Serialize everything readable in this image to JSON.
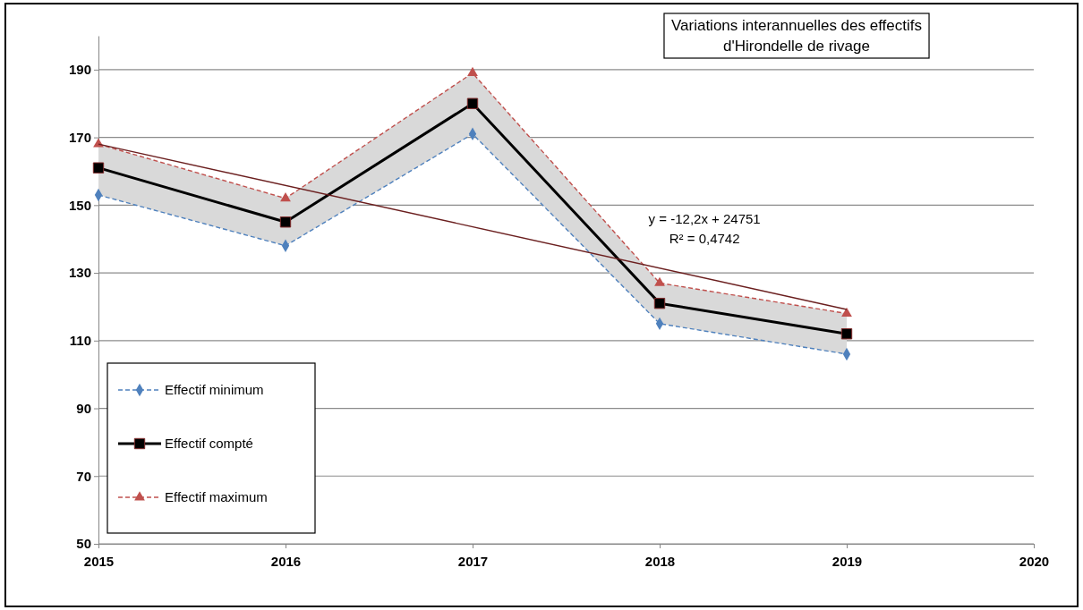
{
  "chart_data": {
    "type": "line",
    "title": "Variations interannuelles des effectifs d'Hirondelle de rivage",
    "x": [
      2015,
      2016,
      2017,
      2018,
      2019
    ],
    "xlim": [
      2015,
      2020
    ],
    "xticks": [
      2015,
      2016,
      2017,
      2018,
      2019,
      2020
    ],
    "ylim": [
      50,
      200
    ],
    "yticks": [
      50,
      70,
      90,
      110,
      130,
      150,
      170,
      190
    ],
    "grid": "y",
    "legend": "bottom left",
    "series": [
      {
        "name": "Effectif minimum",
        "color": "#4f81bd",
        "values": [
          153,
          138,
          171,
          115,
          106
        ],
        "marker": "diamond",
        "line_style": "dashed"
      },
      {
        "name": "Effectif compté",
        "color": "#000000",
        "values": [
          161,
          145,
          180,
          121,
          112
        ],
        "marker": "square",
        "line_style": "solid",
        "lower": [
          153,
          138,
          171,
          115,
          106
        ],
        "upper": [
          168,
          152,
          189,
          127,
          118
        ]
      },
      {
        "name": "Effectif maximum",
        "color": "#c0504d",
        "values": [
          168,
          152,
          189,
          127,
          118
        ],
        "marker": "triangle",
        "line_style": "dashed"
      },
      {
        "type": "line",
        "color": "#6b1f1f",
        "x": [
          2015,
          2019
        ],
        "values": [
          168,
          119.2
        ],
        "marker": "none",
        "line_style": "solid"
      }
    ],
    "annotations": [
      "y = -12,2x + 24751",
      "R² = 0,4742"
    ]
  }
}
